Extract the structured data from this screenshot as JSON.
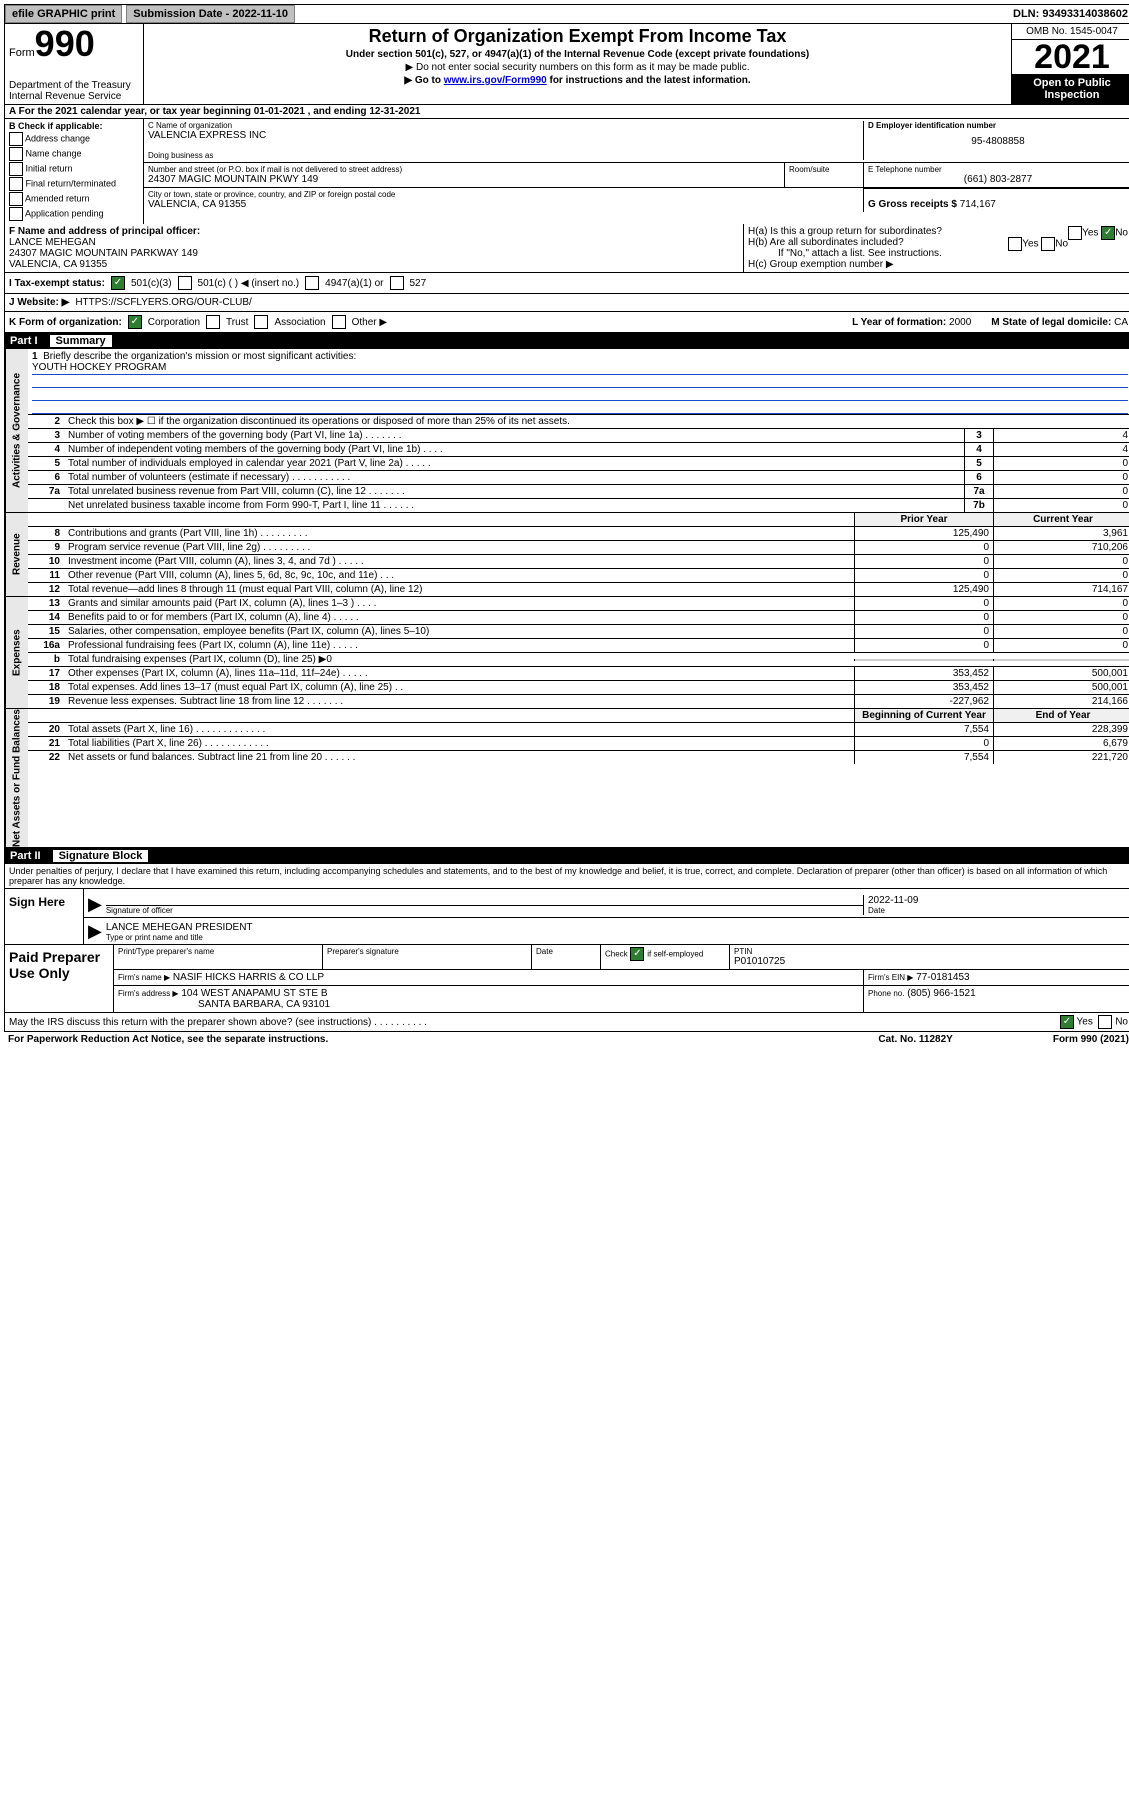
{
  "top": {
    "efile": "efile GRAPHIC print",
    "sub_label": "Submission Date",
    "sub_date": "2022-11-10",
    "dln_label": "DLN:",
    "dln": "93493314038602"
  },
  "header": {
    "form_word": "Form",
    "form_num": "990",
    "title": "Return of Organization Exempt From Income Tax",
    "sub1": "Under section 501(c), 527, or 4947(a)(1) of the Internal Revenue Code (except private foundations)",
    "sub2": "▶ Do not enter social security numbers on this form as it may be made public.",
    "sub3_pre": "▶ Go to ",
    "sub3_link": "www.irs.gov/Form990",
    "sub3_post": " for instructions and the latest information.",
    "dept": "Department of the Treasury\nInternal Revenue Service",
    "omb": "OMB No. 1545-0047",
    "year": "2021",
    "inspect": "Open to Public Inspection"
  },
  "rowA": "A For the 2021 calendar year, or tax year beginning 01-01-2021    , and ending 12-31-2021",
  "colB": {
    "hdr": "B Check if applicable:",
    "items": [
      "Address change",
      "Name change",
      "Initial return",
      "Final return/terminated",
      "Amended return",
      "Application pending"
    ]
  },
  "colC": {
    "name_label": "C Name of organization",
    "name": "VALENCIA EXPRESS INC",
    "dba_label": "Doing business as",
    "dba": "",
    "addr_label": "Number and street (or P.O. box if mail is not delivered to street address)",
    "addr": "24307 MAGIC MOUNTAIN PKWY 149",
    "room_label": "Room/suite",
    "city_label": "City or town, state or province, country, and ZIP or foreign postal code",
    "city": "VALENCIA, CA  91355"
  },
  "colD": {
    "ein_label": "D Employer identification number",
    "ein": "95-4808858",
    "tel_label": "E Telephone number",
    "tel": "(661) 803-2877",
    "gross_label": "G Gross receipts $",
    "gross": "714,167"
  },
  "rowF": {
    "label": "F  Name and address of principal officer:",
    "name": "LANCE MEHEGAN",
    "addr1": "24307 MAGIC MOUNTAIN PARKWAY 149",
    "addr2": "VALENCIA, CA  91355"
  },
  "rowH": {
    "ha": "H(a)  Is this a group return for subordinates?",
    "hb": "H(b)  Are all subordinates included?",
    "hb_note": "If \"No,\" attach a list. See instructions.",
    "hc": "H(c)  Group exemption number ▶",
    "yes": "Yes",
    "no": "No"
  },
  "rowI": {
    "label": "I   Tax-exempt status:",
    "opt1": "501(c)(3)",
    "opt2": "501(c) (   ) ◀ (insert no.)",
    "opt3": "4947(a)(1) or",
    "opt4": "527"
  },
  "rowJ": {
    "label": "J   Website: ▶",
    "val": "HTTPS://SCFLYERS.ORG/OUR-CLUB/"
  },
  "rowK": {
    "label": "K Form of organization:",
    "opts": [
      "Corporation",
      "Trust",
      "Association",
      "Other ▶"
    ],
    "l_label": "L Year of formation:",
    "l_val": "2000",
    "m_label": "M State of legal domicile:",
    "m_val": "CA"
  },
  "part1": {
    "hdr_num": "Part I",
    "hdr_txt": "Summary",
    "q1": "Briefly describe the organization's mission or most significant activities:",
    "q1_val": "YOUTH HOCKEY PROGRAM",
    "q2": "Check this box ▶ ☐  if the organization discontinued its operations or disposed of more than 25% of its net assets.",
    "side_gov": "Activities & Governance",
    "side_rev": "Revenue",
    "side_exp": "Expenses",
    "side_net": "Net Assets or Fund Balances",
    "col_prior": "Prior Year",
    "col_curr": "Current Year",
    "col_beg": "Beginning of Current Year",
    "col_end": "End of Year",
    "lines_gov": [
      {
        "n": "3",
        "d": "Number of voting members of the governing body (Part VI, line 1a)   .    .    .    .    .    .    .",
        "box": "3",
        "v": "4"
      },
      {
        "n": "4",
        "d": "Number of independent voting members of the governing body (Part VI, line 1b)    .    .    .    .",
        "box": "4",
        "v": "4"
      },
      {
        "n": "5",
        "d": "Total number of individuals employed in calendar year 2021 (Part V, line 2a)   .    .    .    .    .",
        "box": "5",
        "v": "0"
      },
      {
        "n": "6",
        "d": "Total number of volunteers (estimate if necessary)   .    .    .    .    .    .    .    .    .    .    .",
        "box": "6",
        "v": "0"
      },
      {
        "n": "7a",
        "d": "Total unrelated business revenue from Part VIII, column (C), line 12   .    .    .    .    .    .    .",
        "box": "7a",
        "v": "0"
      },
      {
        "n": "",
        "d": "Net unrelated business taxable income from Form 990-T, Part I, line 11   .    .    .    .    .    .",
        "box": "7b",
        "v": "0"
      }
    ],
    "lines_rev": [
      {
        "n": "8",
        "d": "Contributions and grants (Part VIII, line 1h)   .    .    .    .    .    .    .    .    .",
        "p": "125,490",
        "c": "3,961"
      },
      {
        "n": "9",
        "d": "Program service revenue (Part VIII, line 2g)   .    .    .    .    .    .    .    .    .",
        "p": "0",
        "c": "710,206"
      },
      {
        "n": "10",
        "d": "Investment income (Part VIII, column (A), lines 3, 4, and 7d )   .    .    .    .    .",
        "p": "0",
        "c": "0"
      },
      {
        "n": "11",
        "d": "Other revenue (Part VIII, column (A), lines 5, 6d, 8c, 9c, 10c, and 11e)   .    .    .",
        "p": "0",
        "c": "0"
      },
      {
        "n": "12",
        "d": "Total revenue—add lines 8 through 11 (must equal Part VIII, column (A), line 12)",
        "p": "125,490",
        "c": "714,167"
      }
    ],
    "lines_exp": [
      {
        "n": "13",
        "d": "Grants and similar amounts paid (Part IX, column (A), lines 1–3 )   .    .    .    .",
        "p": "0",
        "c": "0"
      },
      {
        "n": "14",
        "d": "Benefits paid to or for members (Part IX, column (A), line 4)   .    .    .    .    .",
        "p": "0",
        "c": "0"
      },
      {
        "n": "15",
        "d": "Salaries, other compensation, employee benefits (Part IX, column (A), lines 5–10)",
        "p": "0",
        "c": "0"
      },
      {
        "n": "16a",
        "d": "Professional fundraising fees (Part IX, column (A), line 11e)   .    .    .    .    .",
        "p": "0",
        "c": "0"
      },
      {
        "n": "b",
        "d": "Total fundraising expenses (Part IX, column (D), line 25) ▶0",
        "p": "",
        "c": "",
        "shade": true
      },
      {
        "n": "17",
        "d": "Other expenses (Part IX, column (A), lines 11a–11d, 11f–24e)   .    .    .    .    .",
        "p": "353,452",
        "c": "500,001"
      },
      {
        "n": "18",
        "d": "Total expenses. Add lines 13–17 (must equal Part IX, column (A), line 25)   .    .",
        "p": "353,452",
        "c": "500,001"
      },
      {
        "n": "19",
        "d": "Revenue less expenses. Subtract line 18 from line 12   .    .    .    .    .    .    .",
        "p": "-227,962",
        "c": "214,166"
      }
    ],
    "lines_net": [
      {
        "n": "20",
        "d": "Total assets (Part X, line 16)   .    .    .    .    .    .    .    .    .    .    .    .    .",
        "p": "7,554",
        "c": "228,399"
      },
      {
        "n": "21",
        "d": "Total liabilities (Part X, line 26)   .    .    .    .    .    .    .    .    .    .    .    .",
        "p": "0",
        "c": "6,679"
      },
      {
        "n": "22",
        "d": "Net assets or fund balances. Subtract line 21 from line 20   .    .    .    .    .    .",
        "p": "7,554",
        "c": "221,720"
      }
    ]
  },
  "part2": {
    "hdr_num": "Part II",
    "hdr_txt": "Signature Block",
    "intro": "Under penalties of perjury, I declare that I have examined this return, including accompanying schedules and statements, and to the best of my knowledge and belief, it is true, correct, and complete. Declaration of preparer (other than officer) is based on all information of which preparer has any knowledge.",
    "sign_here": "Sign Here",
    "sig_officer_label": "Signature of officer",
    "sig_date": "2022-11-09",
    "date_label": "Date",
    "name_title": "LANCE MEHEGAN  PRESIDENT",
    "name_title_label": "Type or print name and title",
    "paid": "Paid Preparer Use Only",
    "print_label": "Print/Type preparer's name",
    "prep_sig_label": "Preparer's signature",
    "check_label": "Check",
    "self_emp": "if self-employed",
    "ptin_label": "PTIN",
    "ptin": "P01010725",
    "firm_name_label": "Firm's name    ▶",
    "firm_name": "NASIF HICKS HARRIS & CO LLP",
    "firm_ein_label": "Firm's EIN ▶",
    "firm_ein": "77-0181453",
    "firm_addr_label": "Firm's address ▶",
    "firm_addr1": "104 WEST ANAPAMU ST STE B",
    "firm_addr2": "SANTA BARBARA, CA  93101",
    "phone_label": "Phone no.",
    "phone": "(805) 966-1521"
  },
  "footer": {
    "may": "May the IRS discuss this return with the preparer shown above? (see instructions)   .    .    .    .    .    .    .    .    .    .",
    "yes": "Yes",
    "no": "No",
    "paperwork": "For Paperwork Reduction Act Notice, see the separate instructions.",
    "cat": "Cat. No. 11282Y",
    "form": "Form 990 (2021)"
  }
}
